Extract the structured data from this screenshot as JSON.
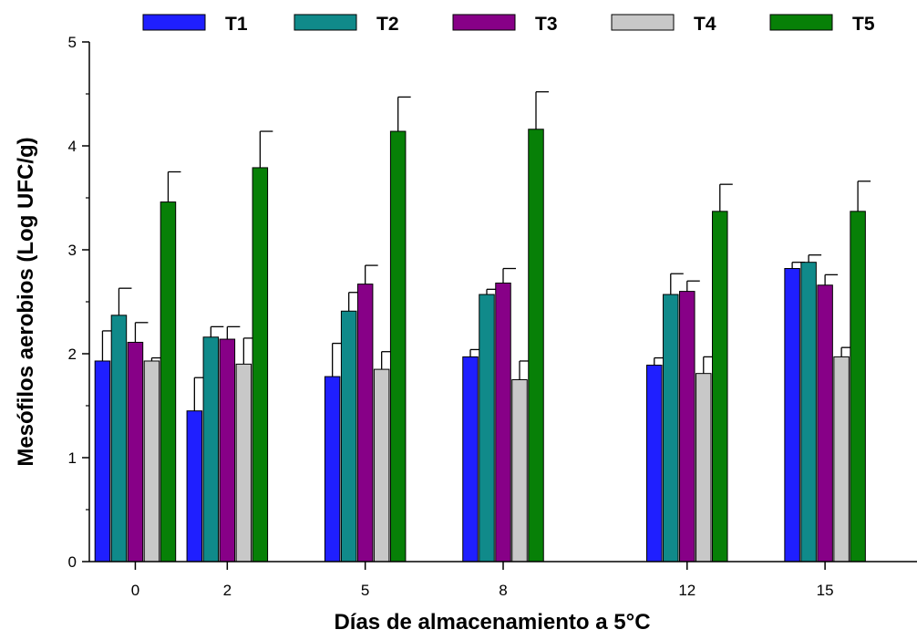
{
  "chart_data": {
    "type": "bar",
    "title": "",
    "xlabel": "Días de almacenamiento a 5°C",
    "ylabel": "Mesófilos aerobios (Log UFC/g)",
    "ylim": [
      0,
      5
    ],
    "yticks": [
      "0",
      "1",
      "2",
      "3",
      "4",
      "5"
    ],
    "grid": false,
    "legend_position": "top",
    "categories": [
      "0",
      "2",
      "5",
      "8",
      "12",
      "15"
    ],
    "x_positions": [
      0,
      2,
      5,
      8,
      12,
      15
    ],
    "xlim": [
      -1,
      17
    ],
    "series": [
      {
        "name": "T1",
        "color": "#1f1fff",
        "values": [
          1.93,
          1.45,
          1.78,
          1.97,
          1.89,
          2.82
        ],
        "errors": [
          0.29,
          0.32,
          0.32,
          0.07,
          0.07,
          0.06
        ]
      },
      {
        "name": "T2",
        "color": "#108a8a",
        "values": [
          2.37,
          2.16,
          2.41,
          2.57,
          2.57,
          2.88
        ],
        "errors": [
          0.26,
          0.1,
          0.18,
          0.05,
          0.2,
          0.07
        ]
      },
      {
        "name": "T3",
        "color": "#870087",
        "values": [
          2.11,
          2.14,
          2.67,
          2.68,
          2.6,
          2.66
        ],
        "errors": [
          0.19,
          0.12,
          0.18,
          0.14,
          0.1,
          0.1
        ]
      },
      {
        "name": "T4",
        "color": "#c8c8c8",
        "values": [
          1.93,
          1.9,
          1.85,
          1.75,
          1.81,
          1.97
        ],
        "errors": [
          0.03,
          0.25,
          0.17,
          0.18,
          0.16,
          0.09
        ]
      },
      {
        "name": "T5",
        "color": "#078007",
        "values": [
          3.46,
          3.79,
          4.14,
          4.16,
          3.37,
          3.37
        ],
        "errors": [
          0.29,
          0.35,
          0.33,
          0.36,
          0.26,
          0.29
        ]
      }
    ]
  }
}
